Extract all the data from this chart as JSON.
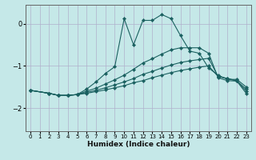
{
  "xlabel": "Humidex (Indice chaleur)",
  "bg_color": "#c5e8e8",
  "grid_color": "#b0b0cc",
  "line_color": "#1a6060",
  "xlim": [
    -0.5,
    23.5
  ],
  "ylim": [
    -2.55,
    0.45
  ],
  "yticks": [
    0,
    -1,
    -2
  ],
  "xticks": [
    0,
    1,
    2,
    3,
    4,
    5,
    6,
    7,
    8,
    9,
    10,
    11,
    12,
    13,
    14,
    15,
    16,
    17,
    18,
    19,
    20,
    21,
    22,
    23
  ],
  "series": [
    {
      "x": [
        0,
        2,
        3,
        4,
        5,
        6,
        7,
        8,
        9,
        10,
        11,
        12,
        13,
        14,
        15,
        16,
        17,
        18,
        19,
        20,
        21,
        22,
        23
      ],
      "y": [
        -1.58,
        -1.65,
        -1.7,
        -1.7,
        -1.68,
        -1.55,
        -1.38,
        -1.18,
        -1.02,
        0.12,
        -0.5,
        0.08,
        0.08,
        0.22,
        0.12,
        -0.28,
        -0.65,
        -0.7,
        -1.05,
        -1.22,
        -1.32,
        -1.32,
        -1.5
      ]
    },
    {
      "x": [
        0,
        2,
        3,
        4,
        5,
        6,
        7,
        8,
        9,
        10,
        11,
        12,
        13,
        14,
        15,
        16,
        17,
        18,
        19,
        20,
        21,
        22,
        23
      ],
      "y": [
        -1.58,
        -1.65,
        -1.7,
        -1.7,
        -1.68,
        -1.6,
        -1.53,
        -1.43,
        -1.33,
        -1.22,
        -1.08,
        -0.93,
        -0.83,
        -0.72,
        -0.62,
        -0.57,
        -0.57,
        -0.57,
        -0.7,
        -1.28,
        -1.35,
        -1.36,
        -1.55
      ]
    },
    {
      "x": [
        0,
        2,
        3,
        4,
        5,
        6,
        7,
        8,
        9,
        10,
        11,
        12,
        13,
        14,
        15,
        16,
        17,
        18,
        19,
        20,
        21,
        22,
        23
      ],
      "y": [
        -1.58,
        -1.65,
        -1.7,
        -1.7,
        -1.68,
        -1.63,
        -1.58,
        -1.52,
        -1.45,
        -1.38,
        -1.3,
        -1.2,
        -1.13,
        -1.05,
        -0.98,
        -0.92,
        -0.88,
        -0.85,
        -0.82,
        -1.25,
        -1.3,
        -1.35,
        -1.6
      ]
    },
    {
      "x": [
        0,
        2,
        3,
        4,
        5,
        6,
        7,
        8,
        9,
        10,
        11,
        12,
        13,
        14,
        15,
        16,
        17,
        18,
        19,
        20,
        21,
        22,
        23
      ],
      "y": [
        -1.58,
        -1.65,
        -1.7,
        -1.7,
        -1.68,
        -1.65,
        -1.61,
        -1.57,
        -1.52,
        -1.47,
        -1.4,
        -1.35,
        -1.28,
        -1.22,
        -1.16,
        -1.11,
        -1.07,
        -1.03,
        -1.0,
        -1.25,
        -1.3,
        -1.36,
        -1.65
      ]
    }
  ],
  "marker": "D",
  "markersize": 2.2,
  "linewidth": 0.8
}
